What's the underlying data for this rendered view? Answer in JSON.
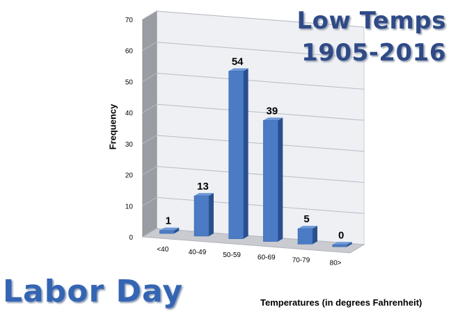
{
  "title_lines": [
    "Low Temps",
    "1905-2016"
  ],
  "caption": "Labor Day",
  "chart_data": {
    "type": "bar",
    "title": "Low Temps 1905-2016",
    "xlabel": "Temperatures (in degrees Fahrenheit)",
    "ylabel": "Frequency",
    "categories": [
      "<40",
      "40-49",
      "50-59",
      "60-69",
      "70-79",
      "80>"
    ],
    "values": [
      1,
      13,
      54,
      39,
      5,
      0
    ],
    "ylim": [
      0,
      70
    ],
    "yticks": [
      0,
      10,
      20,
      30,
      40,
      50,
      60,
      70
    ],
    "grid": true,
    "bar_color": "#4a7bc4",
    "bar_side_color": "#2a4f8f",
    "bar_top_color": "#6f98d6"
  }
}
